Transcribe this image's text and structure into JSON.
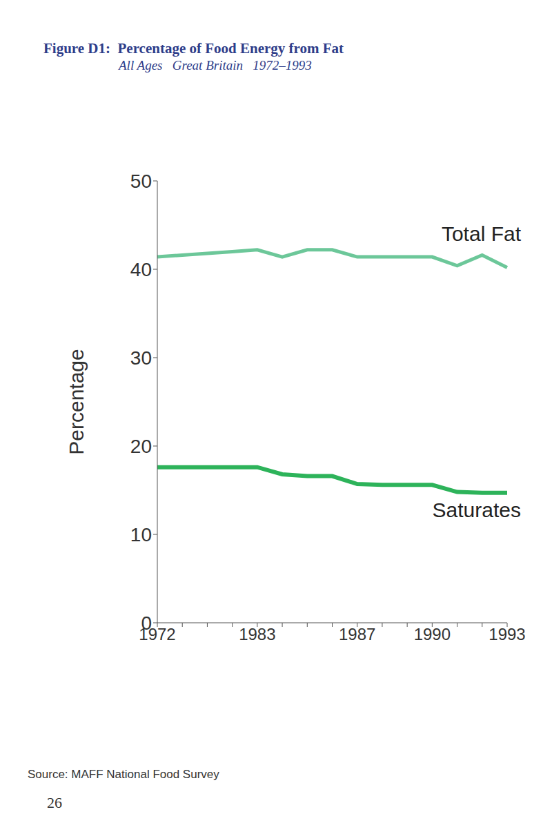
{
  "chart_data": {
    "type": "line",
    "title": "Figure D1:  Percentage of Food Energy from Fat",
    "subtitle": "All Ages   Great Britain   1972–1993",
    "y_label": "Percentage",
    "source": "Source: MAFF National Food Survey",
    "page": "26",
    "categories": [
      "1972",
      null,
      null,
      null,
      "1983",
      null,
      null,
      null,
      "1987",
      null,
      null,
      "1990",
      null,
      null,
      "1993"
    ],
    "series": [
      {
        "name": "Total Fat",
        "color": "#6cc799",
        "values": [
          41.4,
          41.6,
          41.8,
          42.0,
          42.2,
          41.4,
          42.2,
          42.2,
          41.4,
          41.4,
          41.4,
          41.4,
          40.4,
          41.6,
          40.2
        ]
      },
      {
        "name": "Saturates",
        "color": "#2db35a",
        "values": [
          17.6,
          17.6,
          17.6,
          17.6,
          17.6,
          16.8,
          16.6,
          16.6,
          15.7,
          15.6,
          15.6,
          15.6,
          14.8,
          14.7,
          14.7
        ]
      }
    ],
    "ylim": [
      0,
      50
    ],
    "yticks": [
      0,
      10,
      20,
      30,
      40,
      50
    ],
    "grid": false
  }
}
